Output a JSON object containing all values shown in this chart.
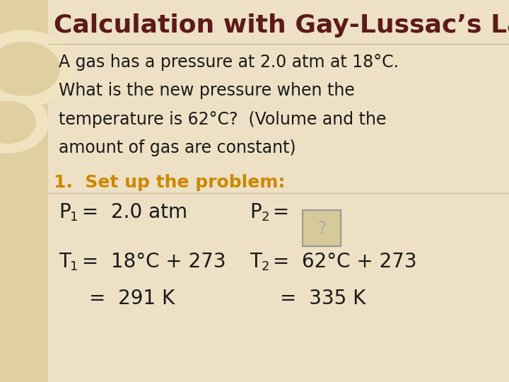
{
  "title": "Calculation with Gay-Lussac’s Law",
  "title_color": "#5C1A1A",
  "title_fontsize": 26,
  "bg_color": "#EDE0C4",
  "left_panel_color": "#E0CFA0",
  "body_text_line1": "A gas has a pressure at 2.0 atm at 18°C.",
  "body_text_line2": "What is the new pressure when the",
  "body_text_line3": "temperature is 62°C?  (Volume and the",
  "body_text_line4": "amount of gas are constant)",
  "body_fontsize": 17,
  "body_color": "#1a1a1a",
  "step_text": "1.  Set up the problem:",
  "step_color": "#CC8800",
  "step_fontsize": 18,
  "eq_fontsize": 20,
  "eq_color": "#1a1a1a",
  "question_mark": "?",
  "qbox_color": "#D6C99A",
  "qbox_border": "#999999",
  "circle_color1": "#F0E4C0",
  "circle_color2": "#EDE0C4"
}
